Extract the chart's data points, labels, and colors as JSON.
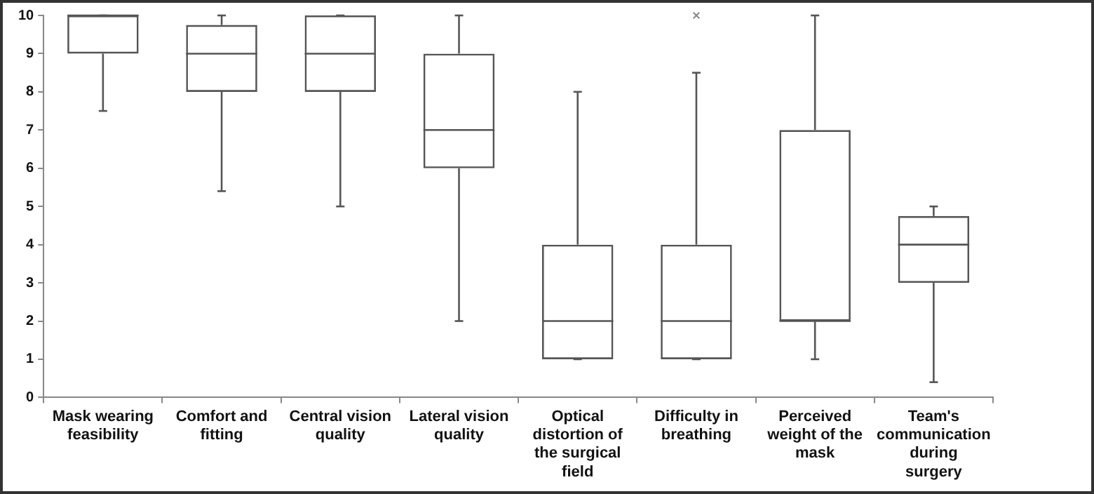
{
  "chart_data": {
    "type": "box",
    "categories": [
      "Mask wearing feasibility",
      "Comfort and fitting",
      "Central vision quality",
      "Lateral  vision quality",
      "Optical distortion of the surgical field",
      "Difficulty in breathing",
      "Perceived weight of the mask",
      "Team's communication during surgery"
    ],
    "boxes": [
      {
        "low": 7.5,
        "q1": 9,
        "median": 10,
        "q3": 10,
        "high": 10
      },
      {
        "low": 5.4,
        "q1": 8,
        "median": 9,
        "q3": 9.75,
        "high": 10
      },
      {
        "low": 5,
        "q1": 8,
        "median": 9,
        "q3": 10,
        "high": 10
      },
      {
        "low": 2,
        "q1": 6,
        "median": 7,
        "q3": 9,
        "high": 10
      },
      {
        "low": 1,
        "q1": 1,
        "median": 2,
        "q3": 4,
        "high": 8
      },
      {
        "low": 1,
        "q1": 1,
        "median": 2,
        "q3": 4,
        "high": 8.5,
        "outliers": [
          10
        ]
      },
      {
        "low": 1,
        "q1": 2,
        "median": 2,
        "q3": 7,
        "high": 10
      },
      {
        "low": 0.4,
        "q1": 3,
        "median": 4,
        "q3": 4.75,
        "high": 5
      }
    ],
    "color": "#555555",
    "ylim": [
      0,
      10
    ],
    "yticks": [
      0,
      1,
      2,
      3,
      4,
      5,
      6,
      7,
      8,
      9,
      10
    ],
    "grid": false,
    "legend": false
  }
}
